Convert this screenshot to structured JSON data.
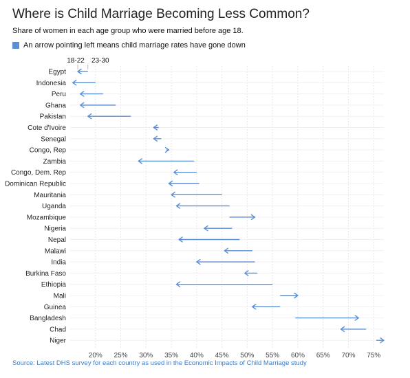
{
  "title": "Where is Child Marriage Becoming Less Common?",
  "subtitle": "Share of women in each age group who were married before age 18.",
  "legend": {
    "text": "An arrow pointing left means child marriage rates have gone down",
    "color": "#5b8fd6"
  },
  "source": {
    "label": "Source:",
    "text": "Latest DHS survey for each country as used in the Economic Impacts of Child Marriage study"
  },
  "colors": {
    "arrow": "#5b8fd6",
    "grid": "#d9d9d9",
    "gridDash": "#e6e6e6"
  },
  "chart_data": {
    "type": "arrow",
    "xlim": [
      15,
      77
    ],
    "xticks": [
      20,
      25,
      30,
      35,
      40,
      45,
      50,
      55,
      60,
      65,
      70,
      75
    ],
    "x_tick_labels": [
      "20%",
      "25%",
      "30%",
      "35%",
      "40%",
      "45%",
      "50%",
      "55%",
      "60%",
      "65%",
      "70%",
      "75%"
    ],
    "annotations": {
      "to_label": "18-22",
      "from_label": "23-30"
    },
    "series": [
      {
        "name": "23-30",
        "values": [
          18.5,
          20.0,
          21.5,
          24.0,
          27.0,
          32.5,
          33.0,
          34.0,
          39.5,
          40.0,
          40.5,
          45.0,
          46.5,
          46.5,
          47.0,
          48.5,
          51.0,
          51.5,
          52.0,
          55.0,
          56.5,
          56.5,
          59.5,
          73.5,
          75.5
        ]
      },
      {
        "name": "18-22",
        "values": [
          16.5,
          15.5,
          17.0,
          17.0,
          18.5,
          31.5,
          31.5,
          34.5,
          28.5,
          35.5,
          34.5,
          35.0,
          36.0,
          51.5,
          41.5,
          36.5,
          45.5,
          40.0,
          49.5,
          36.0,
          60.0,
          51.0,
          72.0,
          68.5,
          77.0
        ]
      }
    ],
    "categories": [
      "Egypt",
      "Indonesia",
      "Peru",
      "Ghana",
      "Pakistan",
      "Cote d'Ivoire",
      "Senegal",
      "Congo, Rep",
      "Zambia",
      "Congo, Dem. Rep",
      "Dominican Republic",
      "Mauritania",
      "Uganda",
      "Mozambique",
      "Nigeria",
      "Nepal",
      "Malawi",
      "India",
      "Burkina Faso",
      "Ethiopia",
      "Mali",
      "Guinea",
      "Bangladesh",
      "Chad",
      "Niger"
    ]
  }
}
